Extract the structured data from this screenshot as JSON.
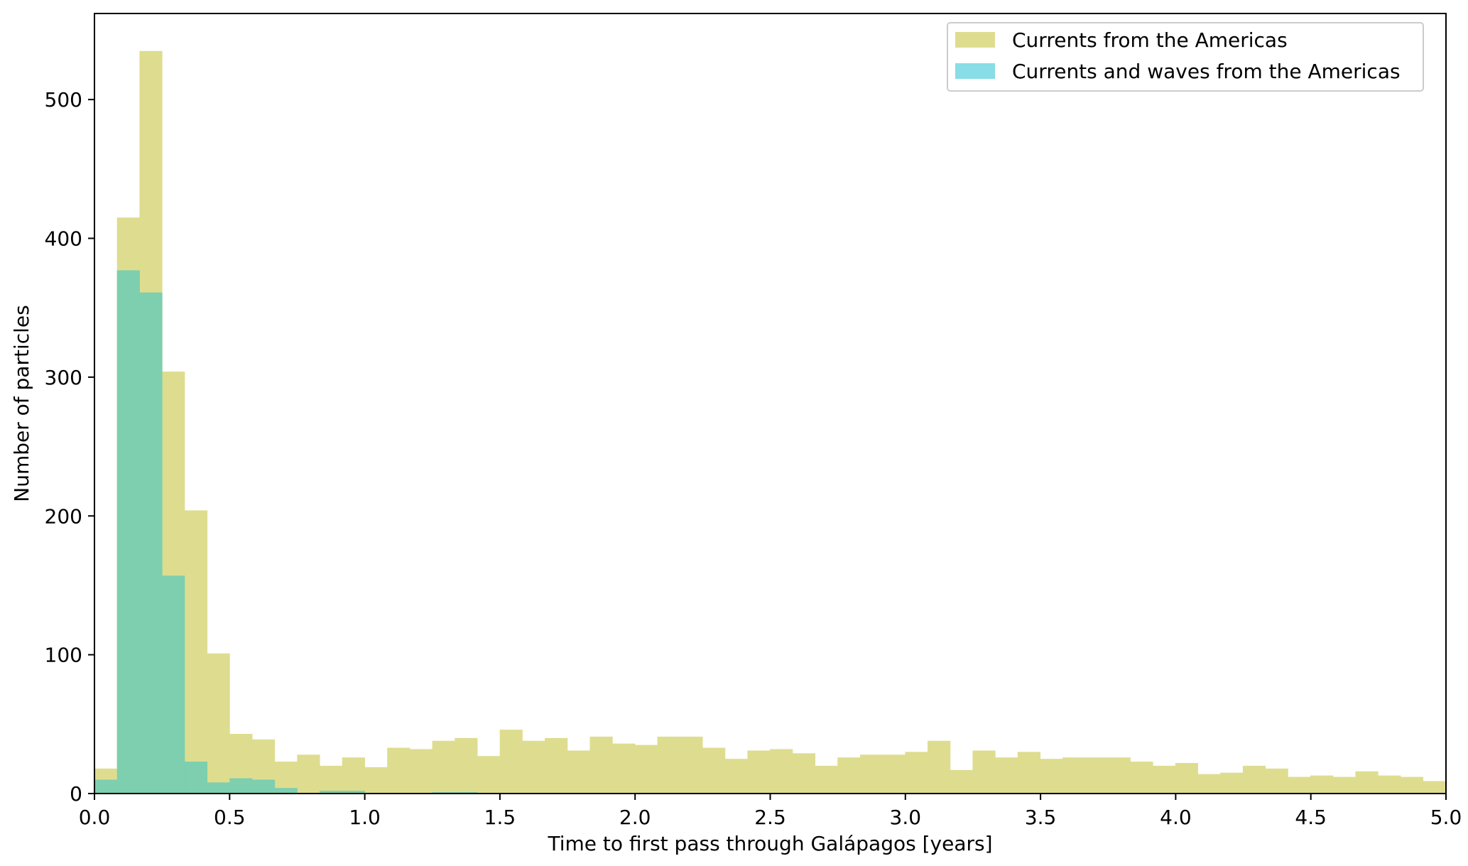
{
  "chart_data": {
    "type": "bar",
    "subtype": "overlapping-histogram",
    "title": "",
    "xlabel": "Time to first pass through Galápagos [years]",
    "ylabel": "Number of particles",
    "xlim": [
      0,
      5
    ],
    "ylim": [
      0,
      562
    ],
    "xticks": [
      0.0,
      0.5,
      1.0,
      1.5,
      2.0,
      2.5,
      3.0,
      3.5,
      4.0,
      4.5,
      5.0
    ],
    "xtick_labels": [
      "0.0",
      "0.5",
      "1.0",
      "1.5",
      "2.0",
      "2.5",
      "3.0",
      "3.5",
      "4.0",
      "4.5",
      "5.0"
    ],
    "yticks": [
      0,
      100,
      200,
      300,
      400,
      500
    ],
    "ytick_labels": [
      "0",
      "100",
      "200",
      "300",
      "400",
      "500"
    ],
    "grid": false,
    "legend_position": "top-right",
    "bin_width": 0.0833,
    "bin_start": 0,
    "series": [
      {
        "name": "Currents from the Americas",
        "color": "#dedd8f",
        "values": [
          18,
          415,
          535,
          304,
          204,
          101,
          43,
          39,
          23,
          28,
          20,
          26,
          19,
          33,
          32,
          38,
          40,
          27,
          46,
          38,
          40,
          31,
          41,
          36,
          35,
          41,
          41,
          33,
          25,
          31,
          32,
          29,
          20,
          26,
          28,
          28,
          30,
          38,
          17,
          31,
          26,
          30,
          25,
          26,
          26,
          26,
          23,
          20,
          22,
          14,
          15,
          20,
          18,
          12,
          13,
          12,
          16,
          13,
          12,
          9
        ]
      },
      {
        "name": "Currents and waves from the Americas",
        "color": "#88dde6",
        "values": [
          10,
          377,
          361,
          157,
          23,
          8,
          11,
          10,
          4,
          0,
          2,
          2,
          0,
          0,
          0,
          1,
          1,
          0,
          0,
          0,
          0,
          0,
          0,
          0,
          0,
          0,
          0,
          0,
          0,
          0,
          0,
          0,
          0,
          0,
          0,
          0,
          0,
          0,
          0,
          0,
          0,
          0,
          0,
          0,
          0,
          0,
          0,
          0,
          0,
          0,
          0,
          0,
          0,
          0,
          0,
          0,
          0,
          0,
          0,
          0
        ]
      }
    ],
    "overlap_color": "#7dcfaf"
  }
}
